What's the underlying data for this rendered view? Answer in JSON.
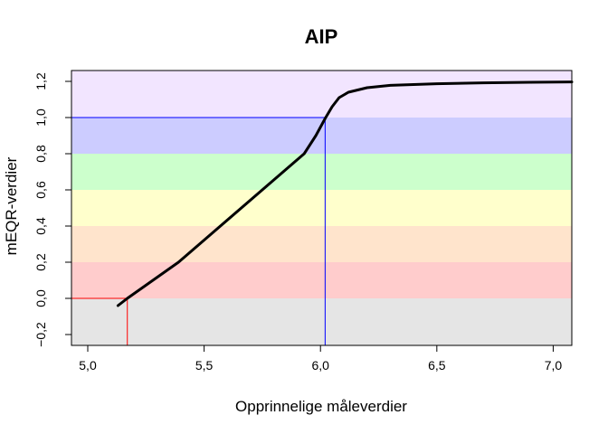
{
  "chart_data": {
    "type": "line",
    "title": "AIP",
    "xlabel": "Opprinnelige måleverdier",
    "ylabel": "mEQR-verdier",
    "xlim": [
      4.93,
      7.08
    ],
    "ylim": [
      -0.26,
      1.26
    ],
    "x_ticks": [
      {
        "value": 5.0,
        "label": "5,0"
      },
      {
        "value": 5.5,
        "label": "5,5"
      },
      {
        "value": 6.0,
        "label": "6,0"
      },
      {
        "value": 6.5,
        "label": "6,5"
      },
      {
        "value": 7.0,
        "label": "7,0"
      }
    ],
    "y_ticks": [
      {
        "value": -0.2,
        "label": "−0,2"
      },
      {
        "value": 0.0,
        "label": "0,0"
      },
      {
        "value": 0.2,
        "label": "0,2"
      },
      {
        "value": 0.4,
        "label": "0,4"
      },
      {
        "value": 0.6,
        "label": "0,6"
      },
      {
        "value": 0.8,
        "label": "0,8"
      },
      {
        "value": 1.0,
        "label": "1,0"
      },
      {
        "value": 1.2,
        "label": "1,2"
      }
    ],
    "bands": [
      {
        "from": -0.26,
        "to": 0.0,
        "color": "#e5e5e5"
      },
      {
        "from": 0.0,
        "to": 0.2,
        "color": "#ffcccc"
      },
      {
        "from": 0.2,
        "to": 0.4,
        "color": "#ffe4cc"
      },
      {
        "from": 0.4,
        "to": 0.6,
        "color": "#ffffcc"
      },
      {
        "from": 0.6,
        "to": 0.8,
        "color": "#ccffcc"
      },
      {
        "from": 0.8,
        "to": 1.0,
        "color": "#ccccff"
      },
      {
        "from": 1.0,
        "to": 1.26,
        "color": "#f2e5ff"
      }
    ],
    "series": [
      {
        "color": "#000000",
        "x": [
          5.13,
          5.17,
          5.39,
          5.93,
          5.98,
          6.02,
          6.05,
          6.08,
          6.12,
          6.2,
          6.3,
          6.5,
          6.7,
          6.9,
          7.08
        ],
        "y": [
          -0.04,
          0.0,
          0.2,
          0.8,
          0.9,
          0.995,
          1.06,
          1.11,
          1.14,
          1.165,
          1.178,
          1.187,
          1.192,
          1.195,
          1.197
        ]
      }
    ],
    "reference_lines": [
      {
        "x": 5.17,
        "y": 0.0,
        "color": "#ff0000"
      },
      {
        "x": 6.02,
        "y": 1.0,
        "color": "#0000ff"
      }
    ],
    "grid": false,
    "legend": "none"
  }
}
